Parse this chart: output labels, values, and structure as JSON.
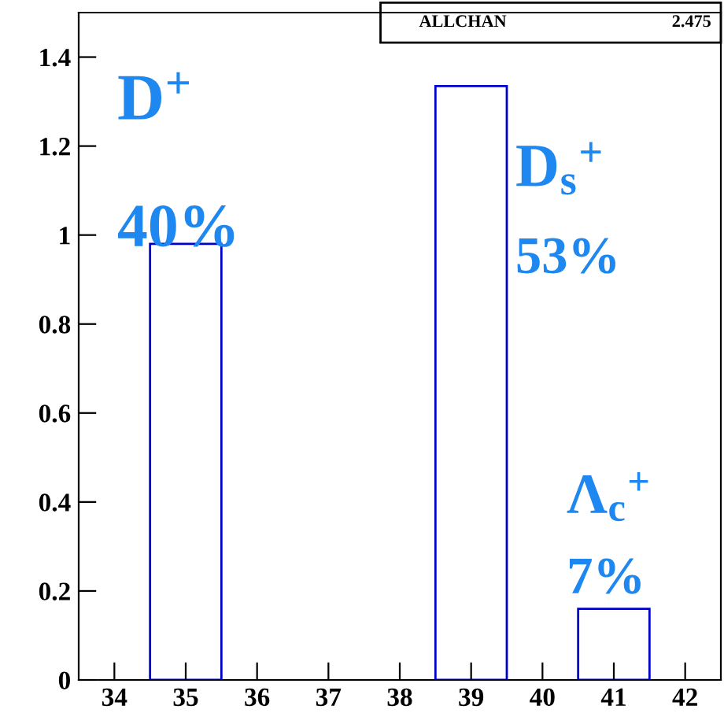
{
  "chart_data": {
    "type": "histogram",
    "bins": [
      33.5,
      34.5,
      35.5,
      36.5,
      37.5,
      38.5,
      39.5,
      40.5,
      41.5,
      42.5
    ],
    "values": [
      0,
      0.98,
      0,
      0,
      0,
      1.335,
      0,
      0.16,
      0
    ],
    "color": "#0000cc",
    "xlim": [
      33.5,
      42.5
    ],
    "xticks": [
      34,
      35,
      36,
      37,
      38,
      39,
      40,
      41,
      42
    ],
    "ylim": [
      0,
      1.5
    ],
    "yticks": [
      0,
      0.2,
      0.4,
      0.6,
      0.8,
      1,
      1.2,
      1.4
    ],
    "grid": false,
    "legend": false,
    "annotations": [
      "D$^{+}$",
      "40%",
      "D$_{s}$$^{+}$",
      "53%",
      "Λ$_{c}$$^{+}$",
      "7%",
      "ALLCHAN",
      "2.475"
    ]
  }
}
